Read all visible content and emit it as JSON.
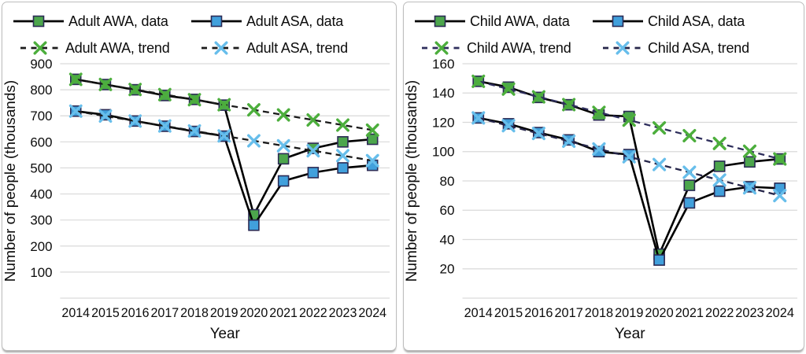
{
  "figure": {
    "background": "#ffffff",
    "panel_border_color": "#bdbdbd",
    "gridline_color": "#d9d9d9",
    "text_color": "#0c0c0c",
    "marker_stroke_color": "#2b2b55",
    "data_line_color": "#000000"
  },
  "chart_data": [
    {
      "id": "adult",
      "type": "line",
      "title": "",
      "xlabel": "Year",
      "ylabel": "Number of people (thousands)",
      "x": [
        2014,
        2015,
        2016,
        2017,
        2018,
        2019,
        2020,
        2021,
        2022,
        2023,
        2024
      ],
      "ylim": [
        0,
        900
      ],
      "yticks": [
        100,
        200,
        300,
        400,
        500,
        600,
        700,
        800,
        900
      ],
      "grid": true,
      "legend_position": "top",
      "series": [
        {
          "name": "Adult AWA, data",
          "role": "data",
          "line_style": "solid",
          "line_color": "#000000",
          "marker": "square",
          "marker_color": "#4ca64c",
          "values": [
            840,
            820,
            800,
            778,
            763,
            741,
            320,
            535,
            575,
            600,
            610
          ]
        },
        {
          "name": "Adult ASA, data",
          "role": "data",
          "line_style": "solid",
          "line_color": "#000000",
          "marker": "square",
          "marker_color": "#41a0dc",
          "values": [
            718,
            704,
            680,
            660,
            640,
            622,
            280,
            450,
            482,
            500,
            510
          ]
        },
        {
          "name": "Adult AWA, trend",
          "role": "trend",
          "line_style": "dashed",
          "line_color": "#1a1a1a",
          "marker": "x",
          "marker_color": "#4cae3c",
          "values": [
            840,
            820.5,
            801,
            781.5,
            762,
            742.5,
            723,
            703.5,
            684,
            664.5,
            645
          ]
        },
        {
          "name": "Adult ASA, trend",
          "role": "trend",
          "line_style": "dashed",
          "line_color": "#1a1a1a",
          "marker": "x",
          "marker_color": "#67beeb",
          "values": [
            718,
            699,
            680,
            661,
            642,
            623,
            604,
            585,
            566,
            547,
            528
          ]
        }
      ]
    },
    {
      "id": "child",
      "type": "line",
      "title": "",
      "xlabel": "Year",
      "ylabel": "Number of people (thousands)",
      "x": [
        2014,
        2015,
        2016,
        2017,
        2018,
        2019,
        2020,
        2021,
        2022,
        2023,
        2024
      ],
      "ylim": [
        0,
        160
      ],
      "yticks": [
        20,
        40,
        60,
        80,
        100,
        120,
        140,
        160
      ],
      "grid": true,
      "legend_position": "top",
      "series": [
        {
          "name": "Child AWA, data",
          "role": "data",
          "line_style": "solid",
          "line_color": "#000000",
          "marker": "square",
          "marker_color": "#4ca64c",
          "values": [
            148,
            144,
            137,
            132,
            125,
            124,
            30,
            77,
            90,
            93,
            95
          ]
        },
        {
          "name": "Child ASA, data",
          "role": "data",
          "line_style": "solid",
          "line_color": "#000000",
          "marker": "square",
          "marker_color": "#41a0dc",
          "values": [
            123,
            119,
            113,
            108,
            100,
            98,
            26,
            65,
            73,
            76,
            75
          ]
        },
        {
          "name": "Child AWA, trend",
          "role": "trend",
          "line_style": "dashed",
          "line_color": "#2e2e5c",
          "marker": "x",
          "marker_color": "#4cae3c",
          "values": [
            148,
            142.7,
            137.4,
            132.1,
            126.8,
            121.5,
            116.2,
            110.9,
            105.6,
            100.3,
            95
          ]
        },
        {
          "name": "Child ASA, trend",
          "role": "trend",
          "line_style": "dashed",
          "line_color": "#26264a",
          "marker": "x",
          "marker_color": "#67beeb",
          "values": [
            123,
            117.7,
            112.4,
            107.1,
            101.8,
            96.5,
            91.2,
            85.9,
            80.6,
            75.3,
            70
          ]
        }
      ]
    }
  ]
}
